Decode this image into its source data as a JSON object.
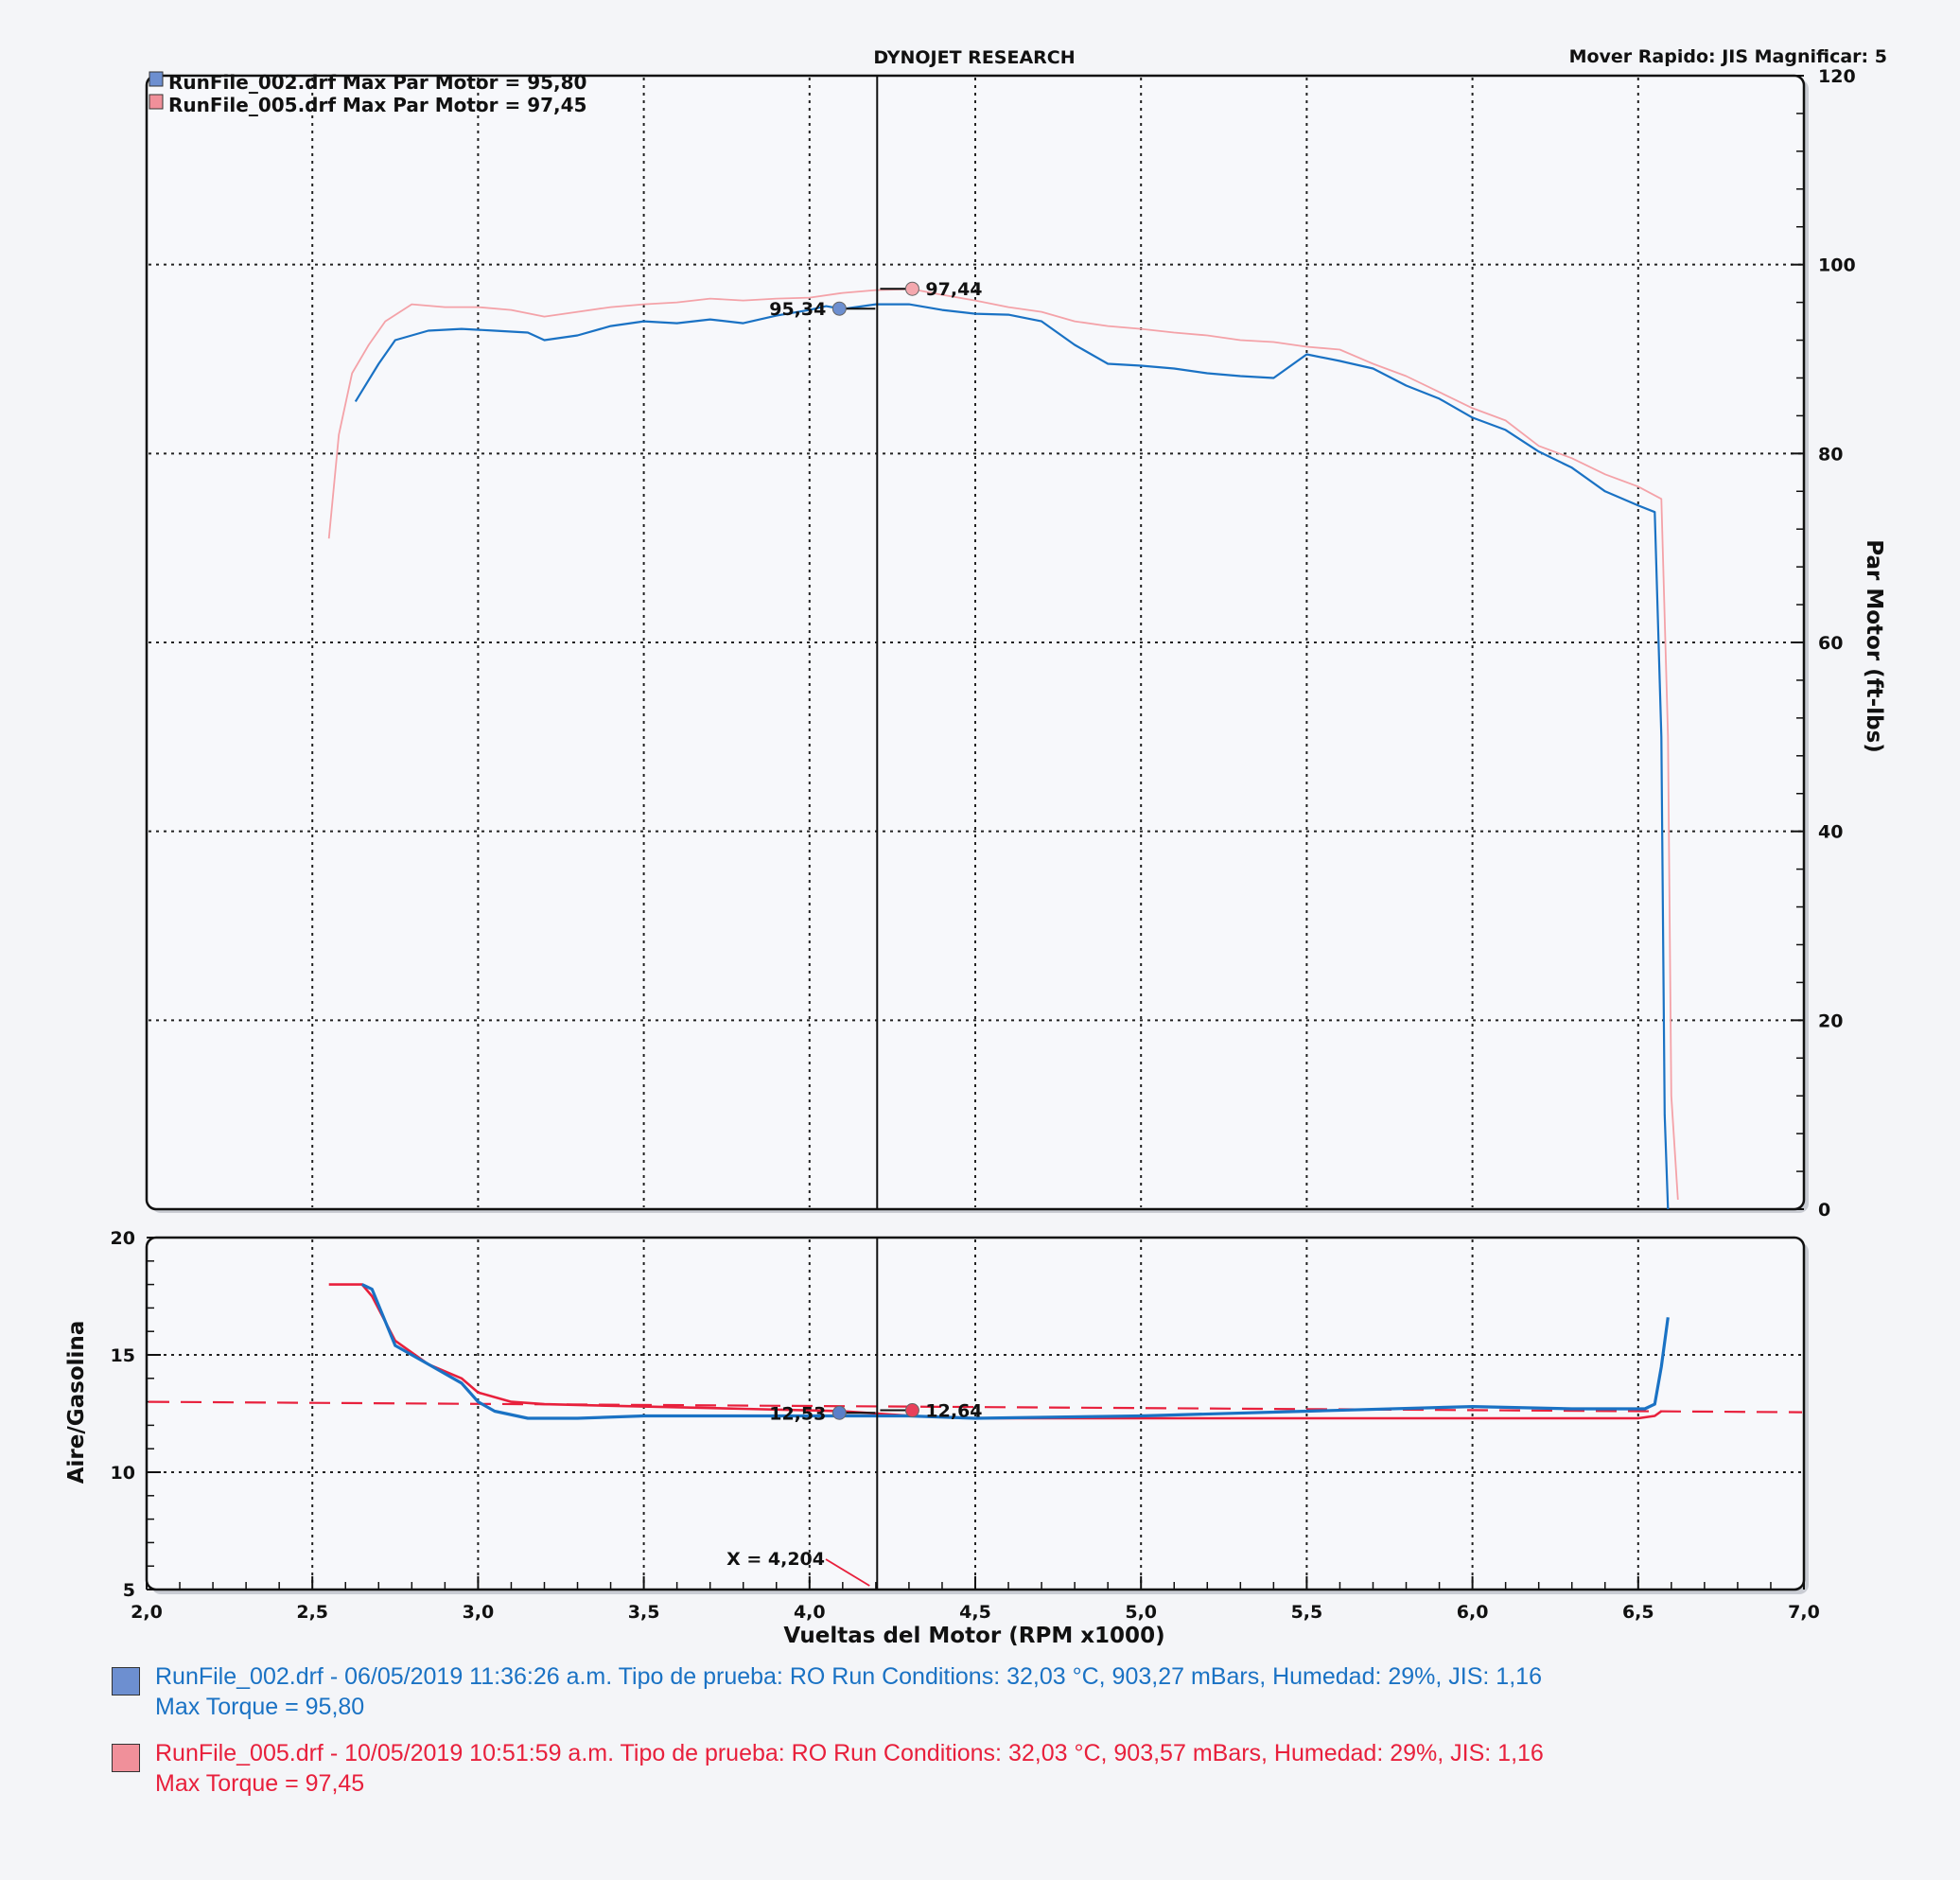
{
  "header": {
    "title": "DYNOJET RESEARCH",
    "right": "Mover Rapido: JIS  Magnificar: 5"
  },
  "legend": [
    {
      "label": "RunFile_002.drf Max Par Motor = 95,80",
      "color": "#6d8fd0"
    },
    {
      "label": "RunFile_005.drf Max Par Motor = 97,45",
      "color": "#f0909a"
    }
  ],
  "colors": {
    "run002": "#1a72c4",
    "run005_top": "#f4a2a8",
    "run005_bottom": "#e8203c",
    "grid": "#222222"
  },
  "chart_data": [
    {
      "type": "line",
      "id": "torque",
      "ylabel": "Par Motor (ft-lbs)",
      "ylim": [
        0,
        120
      ],
      "yticks": [
        0,
        20,
        40,
        60,
        80,
        100,
        120
      ],
      "xlim": [
        2.0,
        7.0
      ],
      "grid": true,
      "legend_placement": "top-left",
      "series": [
        {
          "name": "RunFile_002.drf",
          "x": [
            2.63,
            2.7,
            2.75,
            2.85,
            2.95,
            3.05,
            3.15,
            3.2,
            3.3,
            3.4,
            3.5,
            3.6,
            3.7,
            3.8,
            3.9,
            4.0,
            4.05,
            4.1,
            4.2,
            4.3,
            4.4,
            4.5,
            4.6,
            4.7,
            4.8,
            4.9,
            5.0,
            5.1,
            5.2,
            5.3,
            5.4,
            5.5,
            5.6,
            5.7,
            5.8,
            5.9,
            6.0,
            6.1,
            6.2,
            6.3,
            6.4,
            6.5,
            6.55,
            6.57,
            6.58,
            6.59
          ],
          "y": [
            85.5,
            89.5,
            92.0,
            93.0,
            93.2,
            93.0,
            92.8,
            92.0,
            92.5,
            93.5,
            94.0,
            93.8,
            94.2,
            93.8,
            94.6,
            95.2,
            95.6,
            95.3,
            95.8,
            95.8,
            95.2,
            94.8,
            94.7,
            94.0,
            91.5,
            89.5,
            89.3,
            89.0,
            88.5,
            88.2,
            88.0,
            90.5,
            89.8,
            89.0,
            87.2,
            85.8,
            83.8,
            82.5,
            80.2,
            78.5,
            76.0,
            74.5,
            73.8,
            50.0,
            10.0,
            0.0
          ]
        },
        {
          "name": "RunFile_005.drf",
          "x": [
            2.55,
            2.58,
            2.62,
            2.67,
            2.72,
            2.8,
            2.9,
            3.0,
            3.1,
            3.2,
            3.3,
            3.4,
            3.5,
            3.6,
            3.7,
            3.8,
            3.9,
            4.0,
            4.1,
            4.2,
            4.31,
            4.4,
            4.5,
            4.6,
            4.7,
            4.8,
            4.9,
            5.0,
            5.1,
            5.2,
            5.3,
            5.4,
            5.5,
            5.6,
            5.7,
            5.8,
            5.9,
            6.0,
            6.1,
            6.2,
            6.3,
            6.4,
            6.5,
            6.57,
            6.59,
            6.6,
            6.62
          ],
          "y": [
            71.0,
            82.0,
            88.5,
            91.5,
            94.0,
            95.8,
            95.5,
            95.5,
            95.2,
            94.5,
            95.0,
            95.5,
            95.8,
            96.0,
            96.4,
            96.2,
            96.4,
            96.5,
            97.0,
            97.3,
            97.4,
            96.8,
            96.2,
            95.5,
            95.0,
            94.0,
            93.5,
            93.2,
            92.8,
            92.5,
            92.0,
            91.8,
            91.3,
            91.0,
            89.5,
            88.2,
            86.5,
            84.8,
            83.5,
            80.8,
            79.5,
            77.8,
            76.5,
            75.2,
            50.0,
            12.0,
            1.0
          ]
        }
      ]
    },
    {
      "type": "line",
      "id": "afr",
      "xlabel": "Vueltas del Motor (RPM x1000)",
      "ylabel": "Aire/Gasolina",
      "ylim": [
        5,
        20
      ],
      "yticks": [
        5,
        10,
        15,
        20
      ],
      "xlim": [
        2.0,
        7.0
      ],
      "xticks": [
        "2,0",
        "2,5",
        "3,0",
        "3,5",
        "4,0",
        "4,5",
        "5,0",
        "5,5",
        "6,0",
        "6,5",
        "7,0"
      ],
      "grid": true,
      "reference_line": 13.0,
      "series": [
        {
          "name": "RunFile_002.drf",
          "x": [
            2.65,
            2.68,
            2.75,
            2.85,
            2.95,
            3.0,
            3.05,
            3.15,
            3.3,
            3.5,
            3.7,
            3.9,
            4.1,
            4.3,
            4.5,
            5.0,
            5.5,
            6.0,
            6.3,
            6.52,
            6.55,
            6.57,
            6.59
          ],
          "y": [
            18.0,
            17.8,
            15.4,
            14.6,
            13.8,
            13.0,
            12.6,
            12.3,
            12.3,
            12.4,
            12.4,
            12.4,
            12.4,
            12.4,
            12.3,
            12.4,
            12.6,
            12.8,
            12.7,
            12.7,
            12.9,
            14.5,
            16.6
          ]
        },
        {
          "name": "RunFile_005.drf",
          "x": [
            2.55,
            2.65,
            2.68,
            2.75,
            2.85,
            2.95,
            3.0,
            3.1,
            3.2,
            3.5,
            3.8,
            4.1,
            4.31,
            4.5,
            5.0,
            5.5,
            6.0,
            6.3,
            6.5,
            6.55,
            6.57
          ],
          "y": [
            18.0,
            18.0,
            17.5,
            15.6,
            14.6,
            14.0,
            13.4,
            13.0,
            12.9,
            12.8,
            12.7,
            12.6,
            12.4,
            12.3,
            12.3,
            12.3,
            12.3,
            12.3,
            12.3,
            12.4,
            12.6
          ]
        }
      ]
    }
  ],
  "markers": {
    "torque_002": {
      "x": 4.09,
      "y": 95.34,
      "label": "95,34"
    },
    "torque_005": {
      "x": 4.31,
      "y": 97.44,
      "label": "97,44"
    },
    "afr_002": {
      "x": 4.09,
      "y": 12.53,
      "label": "12,53"
    },
    "afr_005": {
      "x": 4.31,
      "y": 12.64,
      "label": "12,64"
    },
    "cursor": {
      "x": 4.204,
      "label": "X = 4,204"
    }
  },
  "footer": [
    {
      "line1": "RunFile_002.drf - 06/05/2019 11:36:26 a.m.  Tipo de prueba: RO  Run Conditions: 32,03 °C, 903,27 mBars,  Humedad: 29%, JIS: 1,16",
      "line2": "Max Torque = 95,80",
      "color": "#1a72c4",
      "swatch": "#6d8fd0"
    },
    {
      "line1": "RunFile_005.drf - 10/05/2019 10:51:59 a.m.  Tipo de prueba: RO  Run Conditions: 32,03 °C, 903,57 mBars,  Humedad: 29%, JIS: 1,16",
      "line2": "Max Torque = 97,45",
      "color": "#e8203c",
      "swatch": "#f0909a"
    }
  ]
}
